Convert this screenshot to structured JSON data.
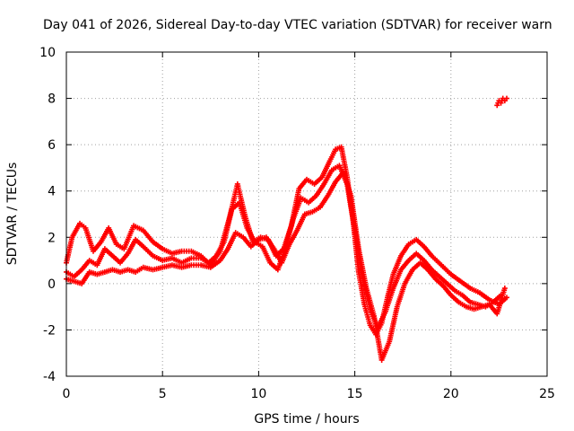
{
  "chart_data": {
    "type": "scatter",
    "title": "Day 041 of 2026, Sidereal Day-to-day VTEC variation (SDTVAR) for receiver warn",
    "xlabel": "GPS time / hours",
    "ylabel": "SDTVAR / TECUs",
    "xlim": [
      0,
      25
    ],
    "ylim": [
      -4,
      10
    ],
    "xticks": [
      0,
      5,
      10,
      15,
      20,
      25
    ],
    "yticks": [
      -4,
      -2,
      0,
      2,
      4,
      6,
      8,
      10
    ],
    "grid": true,
    "marker": "+",
    "series": [
      {
        "name": "series-1",
        "color": "#ff0000",
        "x": [
          0.0,
          0.3,
          0.7,
          1.0,
          1.4,
          1.8,
          2.2,
          2.6,
          3.0,
          3.5,
          4.0,
          4.5,
          5.0,
          5.5,
          6.0,
          6.5,
          7.0,
          7.5,
          8.0,
          8.5,
          8.9,
          9.3,
          9.7,
          10.1,
          10.5,
          10.9,
          11.3,
          11.7,
          12.1,
          12.5,
          12.9,
          13.3,
          13.7,
          14.0,
          14.3,
          14.6,
          14.9,
          15.2,
          15.5,
          15.8,
          16.1,
          16.4,
          16.7,
          17.0,
          17.4,
          17.8,
          18.2,
          18.6,
          19.0,
          19.5,
          20.0,
          20.5,
          21.0,
          21.5,
          22.0,
          22.5,
          22.9
        ],
        "y": [
          0.9,
          2.0,
          2.6,
          2.4,
          1.4,
          1.8,
          2.4,
          1.7,
          1.5,
          2.5,
          2.3,
          1.8,
          1.5,
          1.3,
          1.4,
          1.4,
          1.2,
          0.8,
          1.4,
          2.9,
          4.3,
          2.9,
          1.8,
          2.0,
          1.9,
          1.2,
          1.5,
          2.5,
          4.1,
          4.5,
          4.3,
          4.6,
          5.3,
          5.8,
          5.9,
          4.6,
          2.8,
          0.5,
          -0.9,
          -1.8,
          -2.2,
          -1.7,
          -0.6,
          0.4,
          1.2,
          1.7,
          1.9,
          1.6,
          1.2,
          0.8,
          0.4,
          0.1,
          -0.2,
          -0.4,
          -0.7,
          -0.9,
          -0.6
        ]
      },
      {
        "name": "series-2",
        "color": "#ff0000",
        "x": [
          0.0,
          0.4,
          0.8,
          1.2,
          1.6,
          2.0,
          2.4,
          2.8,
          3.2,
          3.6,
          4.0,
          4.5,
          5.0,
          5.5,
          6.0,
          6.5,
          7.0,
          7.4,
          7.8,
          8.2,
          8.6,
          9.0,
          9.4,
          9.8,
          10.2,
          10.6,
          11.0,
          11.4,
          11.8,
          12.2,
          12.6,
          13.0,
          13.4,
          13.8,
          14.2,
          14.6,
          15.0,
          15.4,
          15.8,
          16.2,
          16.6,
          17.0,
          17.4,
          17.8,
          18.2,
          18.6,
          19.0,
          19.4,
          19.8,
          20.2,
          20.6,
          21.0,
          21.4,
          21.8,
          22.2,
          22.6
        ],
        "y": [
          0.5,
          0.3,
          0.6,
          1.0,
          0.8,
          1.5,
          1.2,
          0.9,
          1.3,
          1.9,
          1.6,
          1.2,
          1.0,
          1.1,
          0.9,
          1.1,
          1.1,
          0.9,
          1.2,
          1.8,
          3.2,
          3.5,
          2.4,
          1.8,
          1.6,
          0.9,
          0.6,
          1.6,
          2.8,
          3.7,
          3.5,
          3.8,
          4.3,
          4.9,
          5.1,
          4.3,
          2.3,
          0.3,
          -1.1,
          -1.9,
          -1.2,
          -0.2,
          0.6,
          1.0,
          1.3,
          1.0,
          0.6,
          0.3,
          0.0,
          -0.3,
          -0.5,
          -0.8,
          -0.9,
          -1.0,
          -0.8,
          -0.5
        ]
      },
      {
        "name": "series-3",
        "color": "#ff0000",
        "x": [
          0.0,
          0.4,
          0.8,
          1.2,
          1.6,
          2.0,
          2.4,
          2.8,
          3.2,
          3.6,
          4.0,
          4.5,
          5.0,
          5.5,
          6.0,
          6.5,
          7.0,
          7.5,
          8.0,
          8.4,
          8.8,
          9.2,
          9.6,
          10.0,
          10.4,
          10.8,
          11.2,
          11.6,
          12.0,
          12.4,
          12.8,
          13.2,
          13.6,
          14.0,
          14.4,
          14.8,
          15.2,
          15.6,
          16.0,
          16.4,
          16.8,
          17.2,
          17.6,
          18.0,
          18.4,
          18.8,
          19.2,
          19.6,
          20.0,
          20.4,
          20.8,
          21.2,
          21.6,
          22.0,
          22.4,
          22.8
        ],
        "y": [
          0.2,
          0.1,
          0.0,
          0.5,
          0.4,
          0.5,
          0.6,
          0.5,
          0.6,
          0.5,
          0.7,
          0.6,
          0.7,
          0.8,
          0.7,
          0.8,
          0.8,
          0.7,
          1.0,
          1.5,
          2.2,
          2.0,
          1.6,
          1.9,
          2.0,
          1.5,
          0.9,
          1.7,
          2.3,
          3.0,
          3.1,
          3.3,
          3.8,
          4.4,
          4.8,
          3.8,
          1.5,
          -0.2,
          -1.4,
          -3.3,
          -2.5,
          -1.0,
          0.0,
          0.6,
          0.9,
          0.6,
          0.2,
          -0.1,
          -0.5,
          -0.8,
          -1.0,
          -1.1,
          -1.0,
          -0.9,
          -1.3,
          -0.2
        ]
      },
      {
        "name": "series-4",
        "color": "#ff0000",
        "x": [
          22.4,
          22.5,
          22.6,
          22.7,
          22.8,
          22.9
        ],
        "y": [
          7.7,
          7.9,
          7.8,
          8.0,
          7.9,
          8.0
        ]
      }
    ]
  }
}
